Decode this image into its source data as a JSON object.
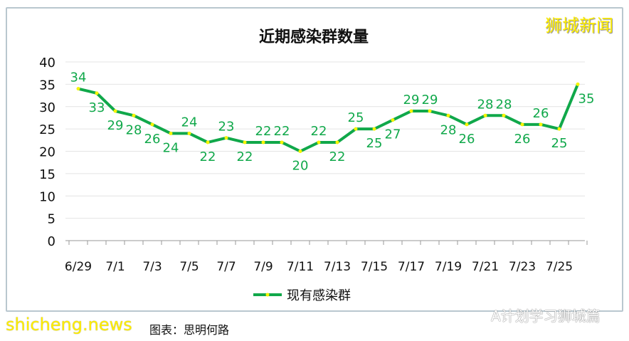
{
  "chart_data": {
    "type": "line",
    "title": "近期感染群数量",
    "categories": [
      "6/29",
      "6/30",
      "7/1",
      "7/2",
      "7/3",
      "7/4",
      "7/5",
      "7/6",
      "7/7",
      "7/8",
      "7/9",
      "7/10",
      "7/11",
      "7/12",
      "7/13",
      "7/14",
      "7/15",
      "7/16",
      "7/17",
      "7/18",
      "7/19",
      "7/20",
      "7/21",
      "7/22",
      "7/23",
      "7/24",
      "7/25",
      "7/26"
    ],
    "x_tick_labels": [
      "6/29",
      "7/1",
      "7/3",
      "7/5",
      "7/7",
      "7/9",
      "7/11",
      "7/13",
      "7/15",
      "7/17",
      "7/19",
      "7/21",
      "7/23",
      "7/25"
    ],
    "series": [
      {
        "name": "现有感染群",
        "values": [
          34,
          33,
          29,
          28,
          26,
          24,
          24,
          22,
          23,
          22,
          22,
          22,
          20,
          22,
          22,
          25,
          25,
          27,
          29,
          29,
          28,
          26,
          28,
          28,
          26,
          26,
          25,
          35
        ]
      }
    ],
    "ylim": [
      0,
      40
    ],
    "y_ticks": [
      0,
      5,
      10,
      15,
      20,
      25,
      30,
      35,
      40
    ],
    "grid": "horizontal",
    "legend": "bottom",
    "colors": {
      "line": "#10a84a",
      "marker": "#f5f500",
      "label": "#10a84a"
    }
  },
  "watermarks": {
    "top_right": "狮城新闻",
    "bottom_right": "A计划学习狮城篇",
    "bottom_left": "shicheng.news"
  },
  "credit": "图表：思明何路"
}
